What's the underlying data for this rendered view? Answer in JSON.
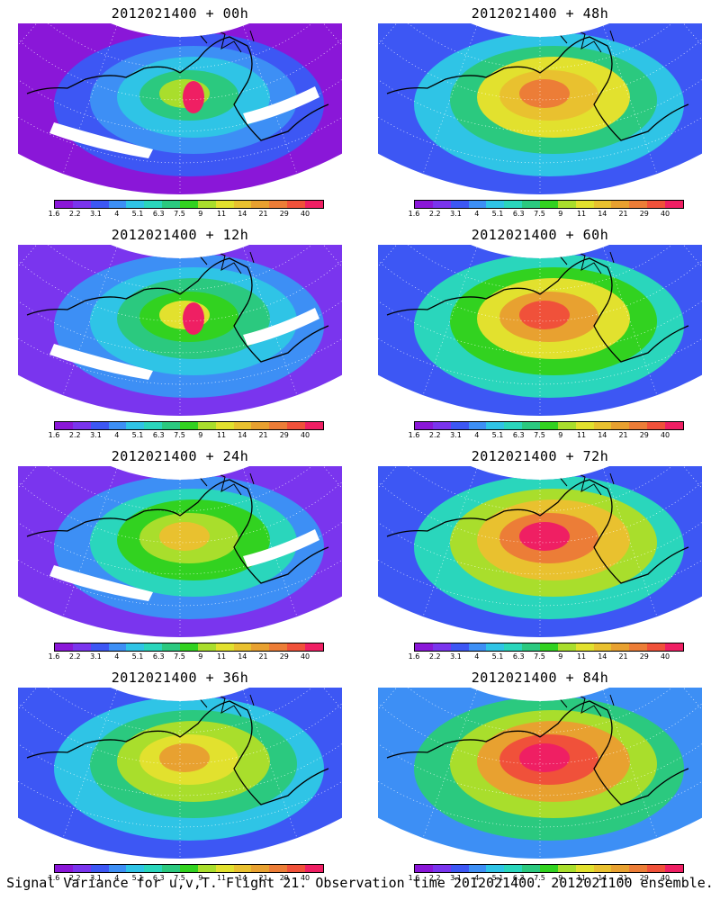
{
  "colorbar": {
    "colors": [
      "#8a17d8",
      "#7a35ee",
      "#3d57f4",
      "#3d8ff5",
      "#2fc4e6",
      "#2ad6bc",
      "#2bc97f",
      "#32d220",
      "#a9de2c",
      "#e2e12e",
      "#e9c12f",
      "#e8a130",
      "#ec7d37",
      "#f0513a",
      "#ef1f63"
    ],
    "labels": [
      "1.6",
      "2.2",
      "3.1",
      "4",
      "5.1",
      "6.3",
      "7.5",
      "9",
      "11",
      "14",
      "21",
      "29",
      "40"
    ]
  },
  "panels": [
    {
      "title": "2012021400 + 00h",
      "level": 0.15,
      "hotspot": true
    },
    {
      "title": "2012021400 + 48h",
      "level": 0.62,
      "hotspot": false
    },
    {
      "title": "2012021400 + 12h",
      "level": 0.32,
      "hotspot": true
    },
    {
      "title": "2012021400 + 60h",
      "level": 0.72,
      "hotspot": false
    },
    {
      "title": "2012021400 + 24h",
      "level": 0.44,
      "hotspot": false
    },
    {
      "title": "2012021400 + 72h",
      "level": 0.82,
      "hotspot": false
    },
    {
      "title": "2012021400 + 36h",
      "level": 0.54,
      "hotspot": false
    },
    {
      "title": "2012021400 + 84h",
      "level": 0.9,
      "hotspot": false
    }
  ],
  "footer": "Signal Variance for u,v,T. Flight 21. Observation time 2012021400. 2012021100 ensemble."
}
